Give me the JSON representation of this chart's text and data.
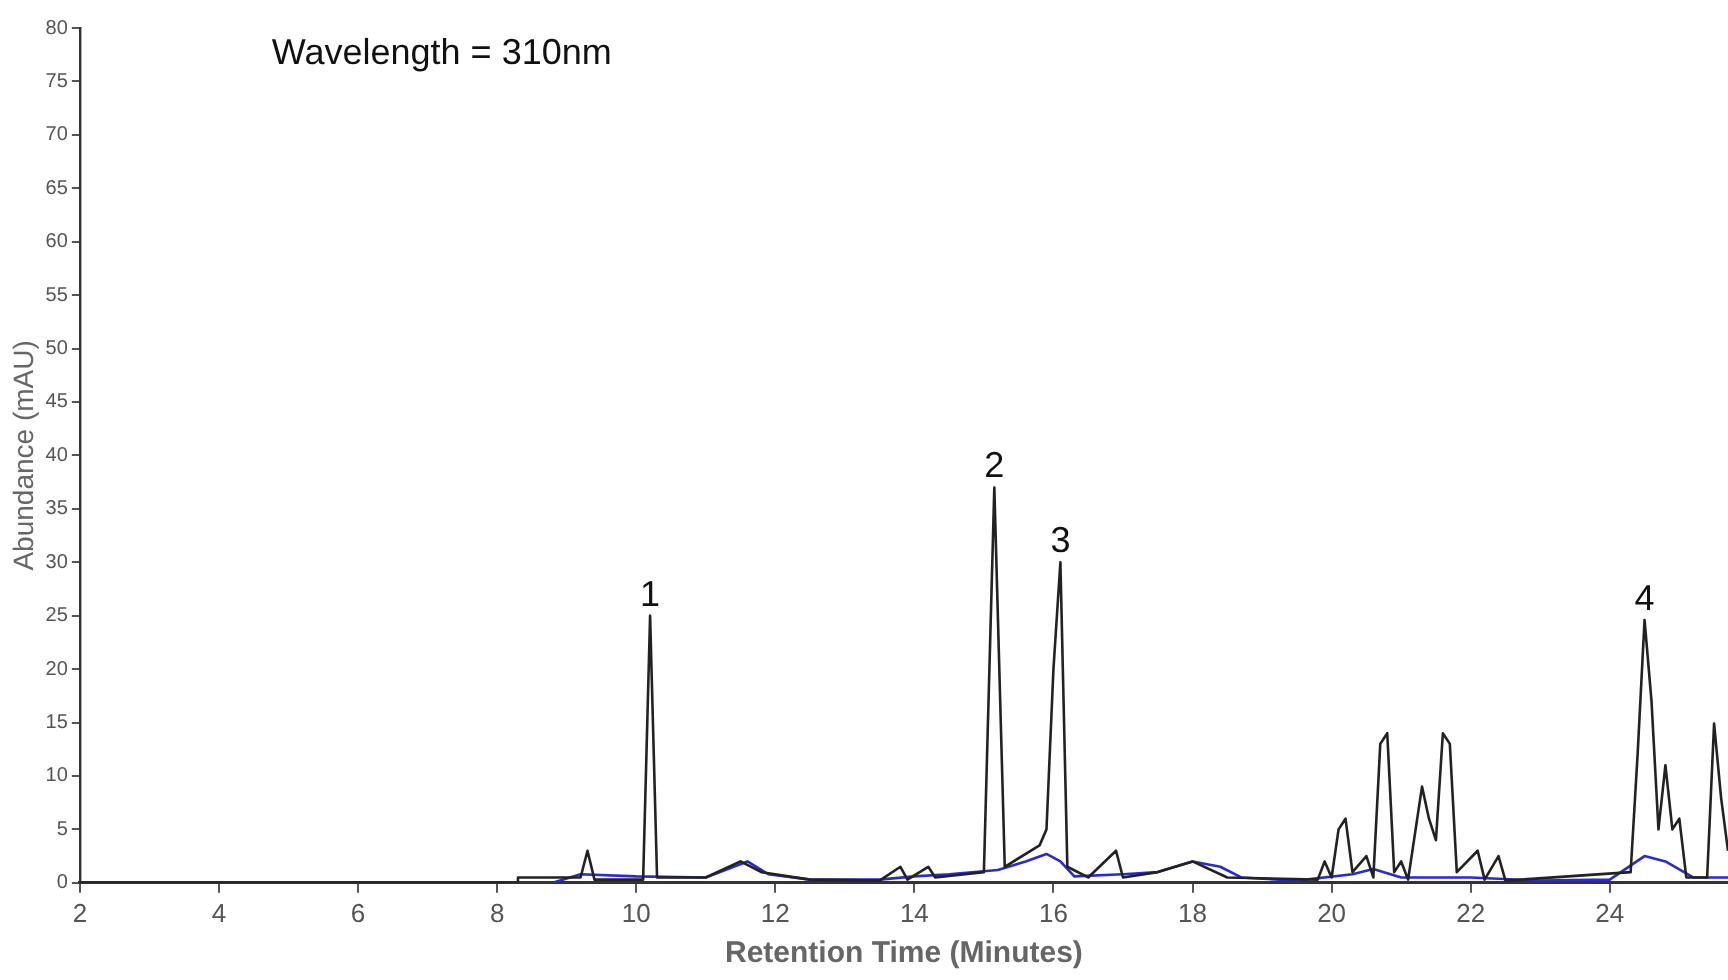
{
  "chart_data": {
    "type": "line",
    "xlabel": "Retention Time (Minutes)",
    "ylabel": "Abundance (mAU)",
    "annotations": [
      "Wavelength = 310nm",
      {
        "text": "1",
        "x": 10.2,
        "y": 25
      },
      {
        "text": "2",
        "x": 15.15,
        "y": 37
      },
      {
        "text": "3",
        "x": 16.1,
        "y": 30
      },
      {
        "text": "4",
        "x": 24.5,
        "y": 24.6
      }
    ],
    "xlim": [
      2,
      25.7
    ],
    "xticks": [
      2,
      4,
      6,
      8,
      10,
      12,
      14,
      16,
      18,
      20,
      22,
      24
    ],
    "ylim": [
      0,
      80
    ],
    "yticks": [
      0,
      5,
      10,
      15,
      20,
      25,
      30,
      35,
      40,
      45,
      50,
      55,
      60,
      65,
      70,
      75,
      80
    ],
    "grid": false,
    "legend": false,
    "marker": "none",
    "line_style": "solid",
    "series": [
      {
        "color": "#222222",
        "x": [
          2,
          8.3,
          8.3,
          9.0,
          9.2,
          9.3,
          9.4,
          10.1,
          10.2,
          10.3,
          11,
          11.5,
          11.8,
          12.5,
          13.5,
          13.8,
          13.9,
          14.2,
          14.3,
          15.0,
          15.15,
          15.3,
          15.8,
          15.9,
          16.0,
          16.1,
          16.2,
          16.5,
          16.9,
          17.0,
          17.5,
          18,
          18.5,
          19.8,
          19.9,
          20.0,
          20.1,
          20.2,
          20.3,
          20.5,
          20.6,
          20.7,
          20.8,
          20.9,
          21.0,
          21.1,
          21.3,
          21.4,
          21.5,
          21.6,
          21.7,
          21.8,
          22.1,
          22.2,
          22.4,
          22.5,
          24.3,
          24.4,
          24.5,
          24.6,
          24.7,
          24.8,
          24.9,
          25.0,
          25.1,
          25.4,
          25.5,
          25.6,
          25.7
        ],
        "values": [
          0,
          0,
          0.5,
          0.5,
          0.5,
          3,
          0.3,
          0.3,
          25,
          0.5,
          0.5,
          2,
          1,
          0.3,
          0.2,
          1.5,
          0.3,
          1.5,
          0.5,
          1,
          37,
          1.5,
          3.5,
          5,
          20,
          30,
          1.5,
          0.5,
          3,
          0.5,
          1,
          2,
          0.5,
          0.3,
          2,
          0.5,
          5,
          6,
          1,
          2.5,
          0.5,
          13,
          14,
          1,
          2,
          0.3,
          9,
          6,
          4,
          14,
          13,
          1,
          3,
          0.3,
          2.5,
          0.2,
          1,
          12,
          24.6,
          17,
          5,
          11,
          5,
          6,
          0.5,
          0.5,
          14.9,
          8,
          3
        ]
      },
      {
        "color": "#2a2ad0",
        "x": [
          8.8,
          9.2,
          10,
          11.0,
          11.6,
          11.9,
          12.5,
          13.5,
          14,
          14.5,
          15.2,
          15.6,
          15.9,
          16.1,
          16.3,
          17,
          17.5,
          18,
          18.4,
          18.7,
          19.5,
          20.3,
          20.6,
          21,
          22,
          23,
          24,
          24.5,
          24.8,
          25.2,
          25.7
        ],
        "values": [
          0,
          0.8,
          0.6,
          0.5,
          2,
          0.8,
          0.3,
          0.3,
          0.6,
          0.8,
          1.2,
          2,
          2.7,
          2,
          0.6,
          0.8,
          1,
          2,
          1.5,
          0.5,
          0.2,
          0.8,
          1.3,
          0.5,
          0.5,
          0.2,
          0.3,
          2.5,
          2,
          0.5,
          0.5
        ]
      }
    ]
  }
}
